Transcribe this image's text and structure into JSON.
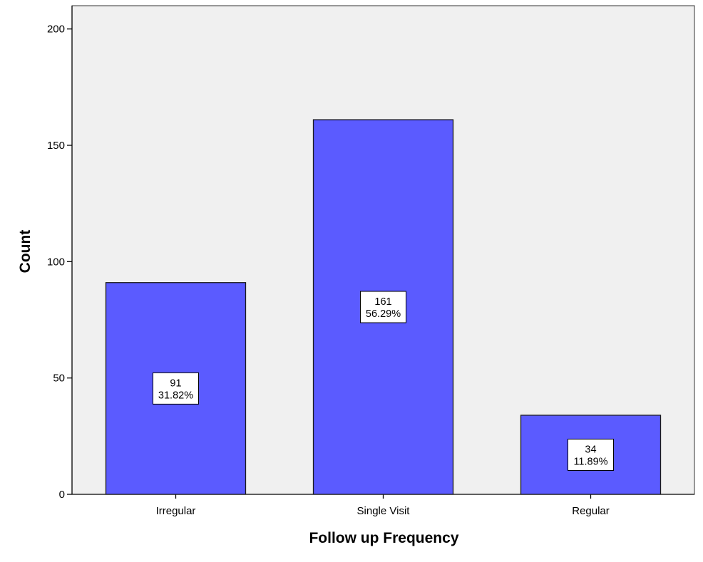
{
  "chart_data": {
    "type": "bar",
    "title": "",
    "xlabel": "Follow up Frequency",
    "ylabel": "Count",
    "ylim": [
      0,
      210
    ],
    "yticks": [
      0,
      50,
      100,
      150,
      200
    ],
    "categories": [
      "Irregular",
      "Single Visit",
      "Regular"
    ],
    "values": [
      91,
      161,
      34
    ],
    "data_labels": [
      {
        "count": "91",
        "percent": "31.82%"
      },
      {
        "count": "161",
        "percent": "56.29%"
      },
      {
        "count": "34",
        "percent": "11.89%"
      }
    ],
    "grid": false,
    "legend": "none"
  },
  "colors": {
    "plot_background": "#f0f0f0",
    "bar_fill": "#5b5bff",
    "bar_stroke": "#1a1a1a",
    "axis": "#000000",
    "label_box": "#ffffff"
  }
}
